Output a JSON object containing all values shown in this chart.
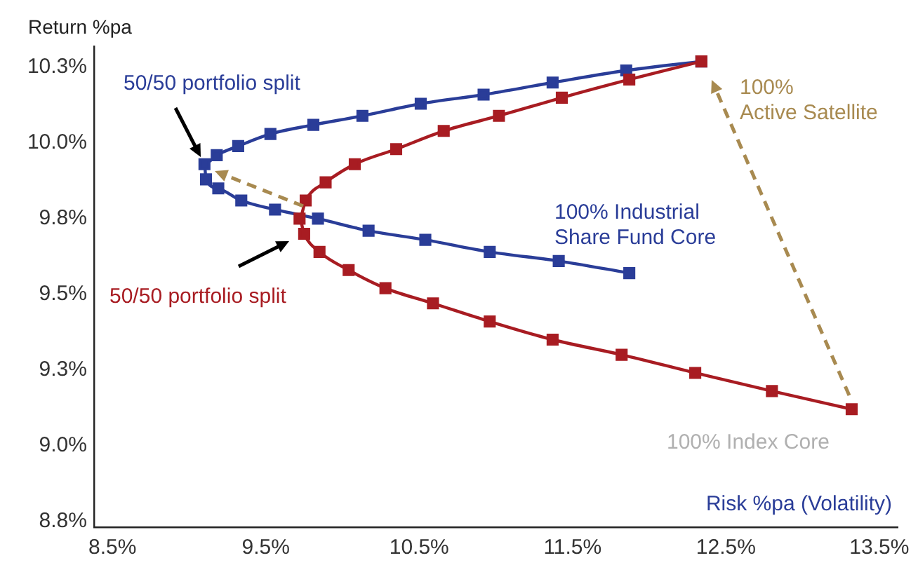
{
  "chart_data": {
    "type": "line",
    "xlabel": "Risk %pa (Volatility)",
    "ylabel": "Return %pa",
    "xlim": [
      8.38,
      13.62
    ],
    "ylim": [
      8.73,
      10.32
    ],
    "xticks": [
      {
        "value": 8.5,
        "label": "8.5%"
      },
      {
        "value": 9.5,
        "label": "9.5%"
      },
      {
        "value": 10.5,
        "label": "10.5%"
      },
      {
        "value": 11.5,
        "label": "11.5%"
      },
      {
        "value": 12.5,
        "label": "12.5%"
      },
      {
        "value": 13.5,
        "label": "13.5%"
      }
    ],
    "yticks": [
      {
        "value": 8.75,
        "label": "8.8%"
      },
      {
        "value": 9.0,
        "label": "9.0%"
      },
      {
        "value": 9.25,
        "label": "9.3%"
      },
      {
        "value": 9.5,
        "label": "9.5%"
      },
      {
        "value": 9.75,
        "label": "9.8%"
      },
      {
        "value": 10.0,
        "label": "10.0%"
      },
      {
        "value": 10.25,
        "label": "10.3%"
      }
    ],
    "grid": false,
    "legend": false,
    "marker": "square",
    "line_style": "solid",
    "series": [
      {
        "color": "#2a3d98",
        "x": [
          12.34,
          11.85,
          11.37,
          10.92,
          10.51,
          10.13,
          9.81,
          9.53,
          9.32,
          9.18,
          9.1,
          9.11,
          9.19,
          9.34,
          9.56,
          9.84,
          10.17,
          10.54,
          10.96,
          11.41,
          11.87
        ],
        "values": [
          10.27,
          10.24,
          10.2,
          10.16,
          10.13,
          10.09,
          10.06,
          10.03,
          9.99,
          9.96,
          9.93,
          9.88,
          9.85,
          9.81,
          9.78,
          9.75,
          9.71,
          9.68,
          9.64,
          9.61,
          9.57
        ]
      },
      {
        "color": "#a81c22",
        "x": [
          12.34,
          11.87,
          11.43,
          11.02,
          10.66,
          10.35,
          10.08,
          9.89,
          9.76,
          9.72,
          9.75,
          9.85,
          10.04,
          10.28,
          10.59,
          10.96,
          11.37,
          11.82,
          12.3,
          12.8,
          13.32
        ],
        "values": [
          10.27,
          10.21,
          10.15,
          10.09,
          10.04,
          9.98,
          9.93,
          9.87,
          9.81,
          9.75,
          9.7,
          9.64,
          9.58,
          9.52,
          9.47,
          9.41,
          9.35,
          9.3,
          9.24,
          9.18,
          9.12
        ]
      }
    ],
    "annotations": [
      "50/50 portfolio split",
      "50/50 portfolio split",
      "100%\nActive Satellite",
      "100% Industrial\nShare Fund Core",
      "100% Index Core"
    ]
  }
}
